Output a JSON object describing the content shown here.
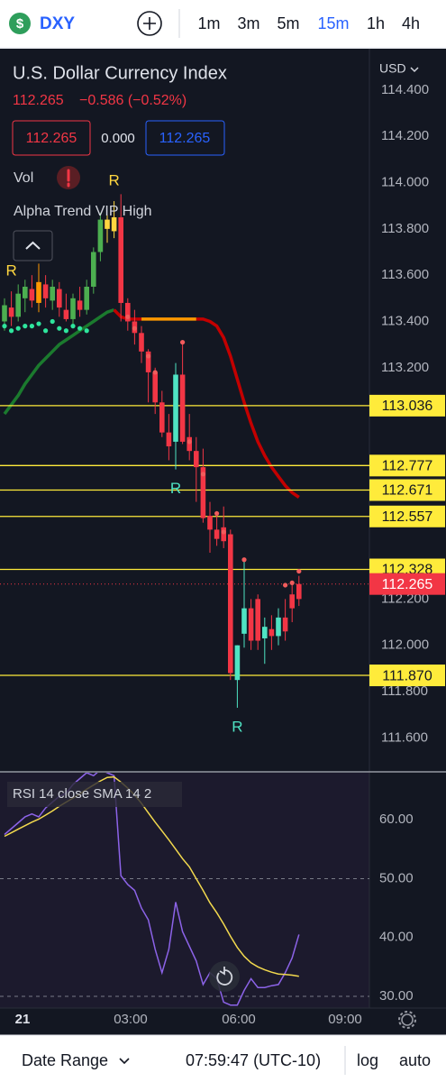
{
  "header": {
    "icon": "$",
    "symbol": "DXY",
    "intervals": [
      "1m",
      "3m",
      "5m",
      "15m",
      "1h",
      "4h"
    ],
    "active_interval": 3
  },
  "legend": {
    "last": "112.265",
    "change": "−0.586 (−0.52%)",
    "bid": "112.265",
    "spread": "0.000",
    "ask": "112.265",
    "volume": "Vol",
    "indicator": "Alpha Trend VIP High"
  },
  "chart_data": [
    {
      "type": "candlestick",
      "title": "U.S. Dollar Currency Index",
      "currency": "USD",
      "ylim": [
        111.457,
        114.575
      ],
      "yticks": [
        {
          "value": 114.4,
          "label": "114.400"
        },
        {
          "value": 114.2,
          "label": "114.200"
        },
        {
          "value": 114,
          "label": "114.000"
        },
        {
          "value": 113.8,
          "label": "113.800"
        },
        {
          "value": 113.6,
          "label": "113.600"
        },
        {
          "value": 113.4,
          "label": "113.400"
        },
        {
          "value": 113.2,
          "label": "113.200"
        },
        {
          "value": 112.2,
          "label": "112.200"
        },
        {
          "value": 112,
          "label": "112.000"
        },
        {
          "value": 111.8,
          "label": "111.800"
        },
        {
          "value": 111.6,
          "label": "111.600"
        }
      ],
      "candles": [
        {
          "o": 113.4,
          "h": 113.5,
          "l": 113.36,
          "c": 113.47,
          "color": "#4caf50"
        },
        {
          "o": 113.46,
          "h": 113.53,
          "l": 113.38,
          "c": 113.42,
          "color": "#f23645"
        },
        {
          "o": 113.42,
          "h": 113.56,
          "l": 113.4,
          "c": 113.52,
          "color": "#4caf50"
        },
        {
          "o": 113.5,
          "h": 113.58,
          "l": 113.44,
          "c": 113.55,
          "color": "#4caf50"
        },
        {
          "o": 113.54,
          "h": 113.6,
          "l": 113.46,
          "c": 113.49,
          "color": "#f23645"
        },
        {
          "o": 113.48,
          "h": 113.65,
          "l": 113.44,
          "c": 113.57,
          "color": "#ff9800"
        },
        {
          "o": 113.56,
          "h": 113.6,
          "l": 113.46,
          "c": 113.5,
          "color": "#f23645"
        },
        {
          "o": 113.49,
          "h": 113.58,
          "l": 113.45,
          "c": 113.55,
          "color": "#4caf50"
        },
        {
          "o": 113.54,
          "h": 113.57,
          "l": 113.42,
          "c": 113.46,
          "color": "#f23645"
        },
        {
          "o": 113.45,
          "h": 113.52,
          "l": 113.4,
          "c": 113.41,
          "color": "#f23645"
        },
        {
          "o": 113.41,
          "h": 113.52,
          "l": 113.39,
          "c": 113.5,
          "color": "#4caf50"
        },
        {
          "o": 113.49,
          "h": 113.55,
          "l": 113.42,
          "c": 113.45,
          "color": "#f23645"
        },
        {
          "o": 113.45,
          "h": 113.58,
          "l": 113.43,
          "c": 113.55,
          "color": "#4caf50"
        },
        {
          "o": 113.55,
          "h": 113.72,
          "l": 113.52,
          "c": 113.7,
          "color": "#4caf50"
        },
        {
          "o": 113.7,
          "h": 113.87,
          "l": 113.66,
          "c": 113.84,
          "color": "#4caf50"
        },
        {
          "o": 113.8,
          "h": 113.86,
          "l": 113.74,
          "c": 113.84,
          "color": "#ffd740"
        },
        {
          "o": 113.79,
          "h": 113.92,
          "l": 113.76,
          "c": 113.85,
          "color": "#ffd740"
        },
        {
          "o": 113.85,
          "h": 113.95,
          "l": 113.4,
          "c": 113.48,
          "color": "#f23645"
        },
        {
          "o": 113.48,
          "h": 113.5,
          "l": 113.36,
          "c": 113.4,
          "color": "#f23645"
        },
        {
          "o": 113.4,
          "h": 113.45,
          "l": 113.3,
          "c": 113.35,
          "color": "#f23645"
        },
        {
          "o": 113.35,
          "h": 113.38,
          "l": 113.22,
          "c": 113.27,
          "color": "#f23645"
        },
        {
          "o": 113.27,
          "h": 113.28,
          "l": 113.05,
          "c": 113.18,
          "color": "#f23645"
        },
        {
          "o": 113.18,
          "h": 113.2,
          "l": 113.0,
          "c": 113.05,
          "color": "#f23645"
        },
        {
          "o": 113.05,
          "h": 113.1,
          "l": 112.9,
          "c": 112.92,
          "color": "#f23645"
        },
        {
          "o": 112.92,
          "h": 113.0,
          "l": 112.8,
          "c": 112.86,
          "color": "#f23645"
        },
        {
          "o": 112.88,
          "h": 113.22,
          "l": 112.76,
          "c": 113.17,
          "color": "#4fe3c3"
        },
        {
          "o": 113.17,
          "h": 113.31,
          "l": 112.87,
          "c": 112.88,
          "color": "#f23645"
        },
        {
          "o": 112.9,
          "h": 113.0,
          "l": 112.8,
          "c": 112.84,
          "color": "#f23645"
        },
        {
          "o": 112.84,
          "h": 112.9,
          "l": 112.62,
          "c": 112.77,
          "color": "#f23645"
        },
        {
          "o": 112.77,
          "h": 112.85,
          "l": 112.53,
          "c": 112.55,
          "color": "#f23645"
        },
        {
          "o": 112.56,
          "h": 112.62,
          "l": 112.4,
          "c": 112.5,
          "color": "#f23645"
        },
        {
          "o": 112.5,
          "h": 112.58,
          "l": 112.43,
          "c": 112.46,
          "color": "#f23645"
        },
        {
          "o": 112.51,
          "h": 112.6,
          "l": 112.42,
          "c": 112.45,
          "color": "#f23645"
        },
        {
          "o": 112.48,
          "h": 112.5,
          "l": 111.85,
          "c": 111.88,
          "color": "#f23645"
        },
        {
          "o": 111.85,
          "h": 112.0,
          "l": 111.73,
          "c": 112.0,
          "color": "#4fe3c3"
        },
        {
          "o": 112.05,
          "h": 112.37,
          "l": 111.99,
          "c": 112.16,
          "color": "#4fe3c3"
        },
        {
          "o": 112.16,
          "h": 112.2,
          "l": 111.98,
          "c": 112.02,
          "color": "#f23645"
        },
        {
          "o": 112.2,
          "h": 112.22,
          "l": 111.98,
          "c": 112.02,
          "color": "#f23645"
        },
        {
          "o": 112.03,
          "h": 112.12,
          "l": 111.92,
          "c": 112.08,
          "color": "#4fe3c3"
        },
        {
          "o": 112.07,
          "h": 112.13,
          "l": 111.98,
          "c": 112.04,
          "color": "#f23645"
        },
        {
          "o": 112.04,
          "h": 112.16,
          "l": 112.0,
          "c": 112.12,
          "color": "#4fe3c3"
        },
        {
          "o": 112.12,
          "h": 112.2,
          "l": 112.02,
          "c": 112.06,
          "color": "#f23645"
        },
        {
          "o": 112.22,
          "h": 112.26,
          "l": 112.1,
          "c": 112.16,
          "color": "#f23645"
        },
        {
          "o": 112.2,
          "h": 112.3,
          "l": 112.17,
          "c": 112.265,
          "color": "#f23645"
        }
      ],
      "trend": [
        {
          "color": "#1b7a2e",
          "values": [
            113.0,
            113.04,
            113.08,
            113.13,
            113.17,
            113.21,
            113.24,
            113.27,
            113.3,
            113.32,
            113.34,
            113.36,
            113.38,
            113.4,
            113.42,
            113.44,
            113.45,
            null,
            null,
            null,
            null,
            null,
            null,
            null,
            null,
            null,
            null,
            null,
            null,
            null,
            null,
            null,
            null,
            null,
            null,
            null,
            null,
            null,
            null,
            null,
            null,
            null,
            null,
            null
          ]
        },
        {
          "color": "#c30000",
          "values": [
            null,
            null,
            null,
            null,
            null,
            null,
            null,
            null,
            null,
            null,
            null,
            null,
            null,
            null,
            null,
            null,
            113.45,
            113.42,
            113.41,
            113.41,
            113.41,
            null,
            null,
            null,
            null,
            null,
            null,
            null,
            113.41,
            113.41,
            113.4,
            113.38,
            113.33,
            113.25,
            113.15,
            113.05,
            112.96,
            112.88,
            112.82,
            112.77,
            112.73,
            112.69,
            112.66,
            112.64
          ]
        },
        {
          "color": "#ff9800",
          "values": [
            null,
            null,
            null,
            null,
            null,
            null,
            null,
            null,
            null,
            null,
            null,
            null,
            null,
            null,
            null,
            null,
            null,
            null,
            null,
            null,
            113.41,
            113.41,
            113.41,
            113.41,
            113.41,
            113.41,
            113.41,
            113.41,
            113.41,
            null,
            null,
            null,
            null,
            null,
            null,
            null,
            null,
            null,
            null,
            null,
            null,
            null,
            null,
            null
          ]
        }
      ],
      "dots": [
        {
          "color": "#2ee59d",
          "values": [
            113.38,
            113.36,
            113.37,
            113.38,
            113.38,
            113.39,
            113.36,
            113.4,
            113.37,
            113.36,
            113.38,
            113.37,
            113.36,
            null,
            null,
            null,
            null,
            null,
            null,
            null,
            null,
            null,
            null,
            null,
            null,
            null,
            null,
            null,
            null,
            null,
            null,
            null,
            null,
            null,
            null,
            null,
            null,
            null,
            null,
            null,
            null,
            null,
            null,
            null
          ]
        },
        {
          "color": "#f25c5c",
          "values": [
            null,
            null,
            null,
            null,
            null,
            null,
            null,
            null,
            null,
            null,
            null,
            null,
            null,
            null,
            null,
            null,
            null,
            null,
            113.42,
            113.37,
            null,
            113.25,
            113.18,
            null,
            null,
            null,
            113.31,
            112.88,
            null,
            112.74,
            null,
            112.57,
            112.49,
            null,
            null,
            112.37,
            null,
            null,
            null,
            null,
            null,
            112.26,
            112.27,
            112.32
          ]
        }
      ],
      "signals": [
        {
          "label": "R",
          "candle": 1,
          "color": "#ffd740",
          "side": "above"
        },
        {
          "label": "R",
          "candle": 16,
          "color": "#ffd740",
          "side": "above"
        },
        {
          "label": "R",
          "candle": 25,
          "color": "#4fe3c3",
          "side": "below"
        },
        {
          "label": "R",
          "candle": 34,
          "color": "#4fe3c3",
          "side": "below"
        }
      ],
      "levels": [
        {
          "value": 113.036,
          "label": "113.036"
        },
        {
          "value": 112.777,
          "label": "112.777"
        },
        {
          "value": 112.671,
          "label": "112.671"
        },
        {
          "value": 112.557,
          "label": "112.557"
        },
        {
          "value": 112.328,
          "label": "112.328"
        },
        {
          "value": 111.87,
          "label": "111.870"
        }
      ],
      "level_color": "#ffeb3b",
      "current_price": {
        "value": 112.265,
        "label": "112.265",
        "color": "#f23645"
      }
    },
    {
      "type": "line",
      "title": "RSI 14 close SMA 14 2",
      "ylim": [
        28,
        68
      ],
      "yticks": [
        {
          "value": 60,
          "label": "60.00"
        },
        {
          "value": 50,
          "label": "50.00"
        },
        {
          "value": 40,
          "label": "40.00"
        },
        {
          "value": 30,
          "label": "30.00"
        }
      ],
      "dashed_levels": [
        50,
        30
      ],
      "series": [
        {
          "color": "#8c63e8",
          "values": [
            57.5,
            58.5,
            59.5,
            60.5,
            61,
            60.5,
            62,
            63,
            64,
            64.5,
            66,
            67,
            68,
            67.5,
            68.5,
            68,
            67.5,
            50.5,
            49,
            48,
            45,
            43,
            38,
            34,
            38,
            46,
            41,
            38.5,
            36,
            32,
            34,
            33,
            29,
            28.5,
            28.5,
            31,
            33,
            31.5,
            31.5,
            31.8,
            32,
            34,
            36.5,
            40.5
          ]
        },
        {
          "color": "#f2d94e",
          "values": [
            57.2,
            57.8,
            58.4,
            59,
            59.6,
            60.1,
            60.8,
            61.5,
            62.3,
            63,
            63.7,
            64.4,
            65.2,
            65.9,
            66.6,
            67.2,
            67.3,
            66.4,
            65.4,
            64.2,
            62.8,
            61.2,
            59.6,
            58.1,
            56.6,
            55,
            53.4,
            52,
            50,
            48,
            45.9,
            44.2,
            42.3,
            40.2,
            38.3,
            36.8,
            35.7,
            35,
            34.5,
            34.1,
            33.8,
            33.7,
            33.6,
            33.4
          ]
        }
      ]
    }
  ],
  "time_axis": {
    "labels": [
      "21",
      "03:00",
      "06:00",
      "09:00"
    ]
  },
  "footer": {
    "date_range": "Date Range",
    "time": "07:59:47 (UTC-10)",
    "log": "log",
    "auto": "auto"
  }
}
